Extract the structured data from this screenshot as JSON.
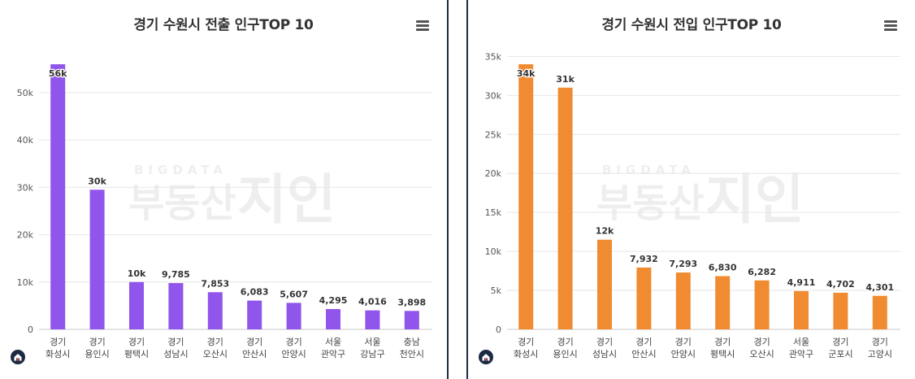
{
  "chart_data": [
    {
      "type": "bar",
      "title": "경기 수원시 전출 인구TOP 10",
      "categories": [
        [
          "경기",
          "화성시"
        ],
        [
          "경기",
          "용인시"
        ],
        [
          "경기",
          "평택시"
        ],
        [
          "경기",
          "성남시"
        ],
        [
          "경기",
          "오산시"
        ],
        [
          "경기",
          "안산시"
        ],
        [
          "경기",
          "안양시"
        ],
        [
          "서울",
          "관악구"
        ],
        [
          "서울",
          "강남구"
        ],
        [
          "충남",
          "천안시"
        ]
      ],
      "values": [
        56000,
        29500,
        10000,
        9785,
        7853,
        6083,
        5607,
        4295,
        4016,
        3898
      ],
      "data_labels": [
        "56k",
        "30k",
        "10k",
        "9,785",
        "7,853",
        "6,083",
        "5,607",
        "4,295",
        "4,016",
        "3,898"
      ],
      "yticks": [
        0,
        10000,
        20000,
        30000,
        40000,
        50000
      ],
      "ytick_labels": [
        "0",
        "10k",
        "20k",
        "30k",
        "40k",
        "50k"
      ],
      "ylim": [
        0,
        60000
      ],
      "color": "#9055ea",
      "grid": true,
      "legend": false
    },
    {
      "type": "bar",
      "title": "경기 수원시 전입 인구TOP 10",
      "categories": [
        [
          "경기",
          "화성시"
        ],
        [
          "경기",
          "용인시"
        ],
        [
          "경기",
          "성남시"
        ],
        [
          "경기",
          "안산시"
        ],
        [
          "경기",
          "안양시"
        ],
        [
          "경기",
          "평택시"
        ],
        [
          "경기",
          "오산시"
        ],
        [
          "서울",
          "관악구"
        ],
        [
          "경기",
          "군포시"
        ],
        [
          "경기",
          "고양시"
        ]
      ],
      "values": [
        34000,
        31000,
        11500,
        7932,
        7293,
        6830,
        6282,
        4911,
        4702,
        4301
      ],
      "data_labels": [
        "34k",
        "31k",
        "12k",
        "7,932",
        "7,293",
        "6,830",
        "6,282",
        "4,911",
        "4,702",
        "4,301"
      ],
      "yticks": [
        0,
        5000,
        10000,
        15000,
        20000,
        25000,
        30000,
        35000
      ],
      "ytick_labels": [
        "0",
        "5k",
        "10k",
        "15k",
        "20k",
        "25k",
        "30k",
        "35k"
      ],
      "ylim": [
        0,
        35000
      ],
      "color": "#f18b32",
      "grid": true,
      "legend": false
    }
  ],
  "watermark": {
    "top": "BIGDATA",
    "main": "부동산",
    "logo": "지인"
  },
  "icons": {
    "menu": "hamburger-menu-icon",
    "logo": "home-logo-icon"
  }
}
